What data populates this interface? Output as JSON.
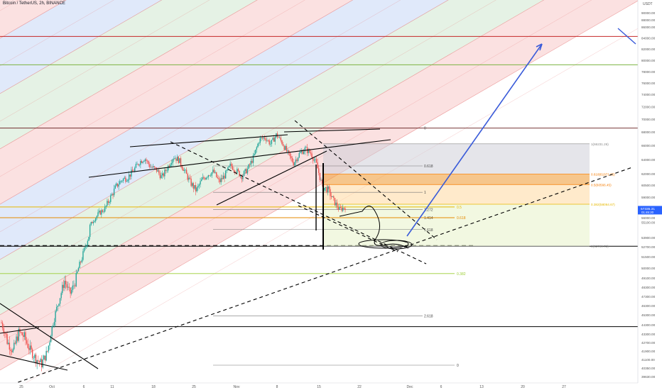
{
  "header": {
    "title": "Bitcoin / TetherUS, 2h, BINANCE",
    "unit": "USDT"
  },
  "chart_data": {
    "type": "line",
    "title": "Bitcoin / TetherUS, 2h, BINANCE",
    "xlabel": "",
    "ylabel": "USDT",
    "ylim": [
      39630,
      92000
    ],
    "price_ticks": [
      "90000.00",
      "88000.00",
      "86000.00",
      "84000.00",
      "82000.00",
      "80000.00",
      "78000.00",
      "76000.00",
      "74000.00",
      "72000.00",
      "70000.00",
      "68000.00",
      "66000.00",
      "64000.00",
      "62000.00",
      "60500.00",
      "59000.00",
      "57500.00",
      "56000.00",
      "55100.00",
      "53900.00",
      "52700.00",
      "51500.00",
      "50000.00",
      "49100.00",
      "48300.00",
      "47300.00",
      "46300.00",
      "45300.00",
      "44300.00",
      "43300.00",
      "42700.00",
      "41900.00",
      "41100.00",
      "40350.00",
      "39630.00"
    ],
    "date_ticks": [
      "25",
      "Oct",
      "6",
      "11",
      "18",
      "25",
      "Nov",
      "8",
      "15",
      "22",
      "Dec",
      "6",
      "13",
      "20",
      "27"
    ],
    "last_price": {
      "value": "57335.31",
      "countdown": "01:45:20",
      "color": "#2962ff"
    },
    "fib_levels": [
      {
        "label": "0",
        "value": 68600
      },
      {
        "label": "0.618",
        "value": 63100
      },
      {
        "label": "1",
        "value": 59600
      },
      {
        "label": "1.272",
        "value": 57300
      },
      {
        "label": "1.414",
        "value": 56000
      },
      {
        "label": "1.618",
        "value": 54200
      },
      {
        "label": "2.618",
        "value": 45200
      },
      {
        "label": "3.618",
        "value": 36600
      }
    ],
    "fib_right_labels": [
      {
        "label": "1(66231.26)",
        "value": 66231,
        "color": "#888888"
      },
      {
        "label": "0.618(61971.65)",
        "value": 61970,
        "color": "#f57c00"
      },
      {
        "label": "0.5(60566.45)",
        "value": 60570,
        "color": "#f57c00"
      },
      {
        "label": "0.382(58064.67)",
        "value": 58060,
        "color": "#e6b800"
      },
      {
        "label": "0(52769.72)",
        "value": 52770,
        "color": "#888888"
      }
    ],
    "orange_levels": [
      {
        "label": "0.5",
        "value": 57700,
        "color": "#e6b800"
      },
      {
        "label": "0.618",
        "value": 56000,
        "color": "#e68a00"
      },
      {
        "label": "0.382",
        "value": 49500,
        "color": "#9acd32"
      }
    ],
    "extra_labels": [
      {
        "label": "0",
        "value": 40600
      }
    ],
    "horizontal_lines": [
      {
        "value": 84300,
        "color": "#c62828"
      },
      {
        "value": 79200,
        "color": "#7cb342"
      },
      {
        "value": 68600,
        "color": "#7a3a3a"
      },
      {
        "value": 44100,
        "color": "#000000"
      },
      {
        "value": 52770,
        "color": "#000000"
      }
    ],
    "channel_colors": [
      "#f7c9c9",
      "#c7d7f6",
      "#cfe8cf",
      "#f7c9c9",
      "#c7d7f6",
      "#cfe8cf",
      "#f7c9c9"
    ],
    "candle_colors": {
      "up": "#26a69a",
      "down": "#ef5350"
    },
    "series": [
      {
        "values": [
          44500,
          42800,
          41900,
          43500,
          43100,
          42000,
          41200,
          40700,
          41800,
          44500,
          46800,
          48900,
          47600,
          49000,
          51200,
          53600,
          55500,
          56700,
          57400,
          58900,
          60300,
          61200,
          61500,
          62400,
          63600,
          64200,
          63000,
          62600,
          61500,
          62900,
          64400,
          63900,
          62300,
          60800,
          59800,
          61200,
          61900,
          62300,
          60900,
          61800,
          63200,
          62400,
          61700,
          62700,
          64300,
          66800,
          67200,
          66200,
          67600,
          66400,
          64800,
          63500,
          64800,
          65500,
          64900,
          63300,
          60300,
          59900,
          58500,
          57300,
          57700
        ]
      }
    ]
  }
}
